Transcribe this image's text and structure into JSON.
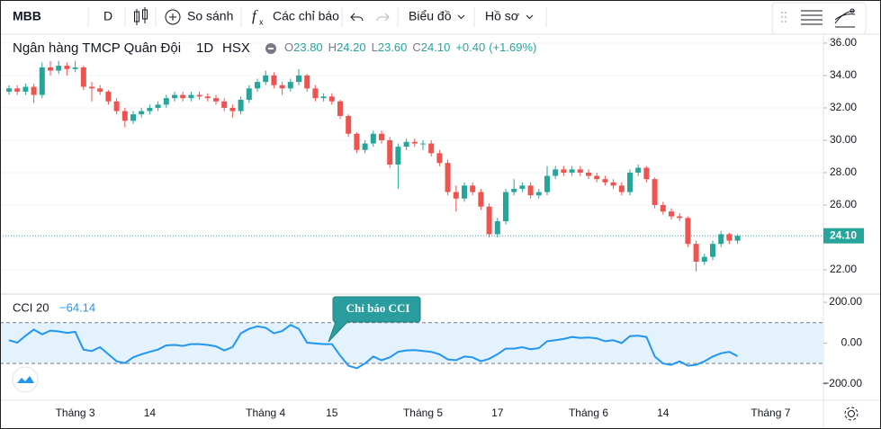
{
  "toolbar": {
    "symbol": "MBB",
    "interval": "D",
    "compare": "So sánh",
    "indicators": "Các chỉ báo",
    "chart": "Biểu đồ",
    "profile": "Hồ sơ"
  },
  "chart_data": [
    {
      "type": "candlestick",
      "title": "Ngân hàng TMCP Quân Đội",
      "interval": "1D",
      "exchange": "HSX",
      "up_color": "#26a69a",
      "down_color": "#ef5350",
      "categories": [
        null,
        null,
        null,
        null,
        null,
        null,
        null,
        null,
        "Tháng 3",
        null,
        null,
        null,
        null,
        null,
        null,
        null,
        null,
        "14",
        null,
        null,
        null,
        null,
        null,
        null,
        null,
        null,
        null,
        null,
        null,
        null,
        null,
        "Tháng 4",
        null,
        null,
        null,
        null,
        null,
        null,
        null,
        "15",
        null,
        null,
        null,
        null,
        null,
        null,
        null,
        null,
        null,
        null,
        "Tháng 5",
        null,
        null,
        null,
        null,
        null,
        null,
        null,
        null,
        "17",
        null,
        null,
        null,
        null,
        null,
        null,
        null,
        null,
        null,
        null,
        "Tháng 6",
        null,
        null,
        null,
        null,
        null,
        null,
        null,
        null,
        "14",
        null,
        null,
        null,
        null,
        null,
        null,
        null,
        null,
        null,
        null,
        null,
        null,
        "Tháng 7"
      ],
      "ohlc": [
        [
          33.0,
          33.4,
          32.8,
          33.2
        ],
        [
          33.2,
          33.4,
          32.8,
          33.0
        ],
        [
          33.0,
          33.5,
          32.8,
          33.3
        ],
        [
          33.3,
          33.5,
          32.3,
          32.8
        ],
        [
          32.8,
          34.8,
          32.6,
          34.5
        ],
        [
          34.5,
          34.9,
          34.0,
          34.3
        ],
        [
          34.3,
          34.9,
          34.1,
          34.6
        ],
        [
          34.6,
          34.8,
          34.0,
          34.4
        ],
        [
          34.4,
          34.9,
          34.2,
          34.5
        ],
        [
          34.5,
          34.6,
          33.1,
          33.3
        ],
        [
          33.3,
          33.6,
          32.4,
          33.2
        ],
        [
          33.2,
          33.4,
          32.8,
          33.0
        ],
        [
          33.0,
          33.1,
          32.2,
          32.4
        ],
        [
          32.4,
          32.6,
          31.6,
          31.8
        ],
        [
          31.8,
          32.0,
          30.8,
          31.2
        ],
        [
          31.2,
          31.8,
          31.0,
          31.6
        ],
        [
          31.6,
          32.0,
          31.4,
          31.8
        ],
        [
          31.8,
          32.2,
          31.6,
          32.0
        ],
        [
          32.0,
          32.4,
          31.8,
          32.2
        ],
        [
          32.2,
          32.8,
          32.0,
          32.6
        ],
        [
          32.6,
          33.0,
          32.4,
          32.8
        ],
        [
          32.8,
          33.0,
          32.4,
          32.6
        ],
        [
          32.6,
          33.0,
          32.4,
          32.8
        ],
        [
          32.8,
          33.0,
          32.5,
          32.7
        ],
        [
          32.7,
          32.9,
          32.4,
          32.6
        ],
        [
          32.6,
          32.8,
          32.2,
          32.4
        ],
        [
          32.4,
          32.6,
          31.8,
          32.0
        ],
        [
          32.0,
          32.2,
          31.4,
          31.8
        ],
        [
          31.8,
          32.7,
          31.6,
          32.5
        ],
        [
          32.5,
          33.4,
          32.3,
          33.2
        ],
        [
          33.2,
          33.8,
          33.0,
          33.6
        ],
        [
          33.6,
          34.3,
          33.4,
          34.0
        ],
        [
          34.0,
          34.2,
          33.2,
          33.4
        ],
        [
          33.4,
          33.6,
          32.8,
          33.2
        ],
        [
          33.2,
          33.8,
          33.0,
          33.6
        ],
        [
          33.6,
          34.4,
          33.4,
          34.0
        ],
        [
          34.0,
          34.1,
          33.0,
          33.2
        ],
        [
          33.2,
          33.4,
          32.4,
          32.6
        ],
        [
          32.6,
          32.9,
          32.4,
          32.7
        ],
        [
          32.7,
          32.9,
          32.2,
          32.4
        ],
        [
          32.4,
          32.5,
          31.3,
          31.5
        ],
        [
          31.5,
          31.6,
          30.2,
          30.4
        ],
        [
          30.4,
          30.5,
          29.2,
          29.4
        ],
        [
          29.4,
          30.0,
          29.2,
          29.8
        ],
        [
          29.8,
          30.6,
          29.6,
          30.4
        ],
        [
          30.4,
          30.6,
          29.8,
          30.0
        ],
        [
          30.0,
          30.2,
          28.3,
          28.5
        ],
        [
          28.5,
          29.8,
          27.0,
          29.6
        ],
        [
          29.6,
          30.1,
          29.4,
          29.9
        ],
        [
          29.9,
          30.1,
          29.6,
          29.8
        ],
        [
          29.8,
          30.0,
          29.4,
          29.8
        ],
        [
          29.8,
          30.0,
          29.0,
          29.2
        ],
        [
          29.2,
          29.4,
          28.4,
          28.6
        ],
        [
          28.6,
          28.8,
          26.6,
          26.8
        ],
        [
          26.8,
          27.2,
          25.6,
          26.4
        ],
        [
          26.4,
          27.4,
          26.2,
          27.2
        ],
        [
          27.2,
          27.4,
          26.6,
          26.8
        ],
        [
          26.8,
          27.0,
          25.7,
          25.9
        ],
        [
          25.9,
          26.1,
          24.0,
          24.2
        ],
        [
          24.2,
          25.2,
          24.0,
          25.0
        ],
        [
          25.0,
          27.0,
          24.8,
          26.8
        ],
        [
          26.8,
          27.6,
          26.6,
          27.0
        ],
        [
          27.0,
          27.4,
          26.8,
          27.2
        ],
        [
          27.2,
          27.4,
          26.4,
          26.6
        ],
        [
          26.6,
          27.0,
          26.4,
          26.8
        ],
        [
          26.8,
          28.4,
          26.6,
          27.8
        ],
        [
          27.8,
          28.4,
          27.6,
          28.2
        ],
        [
          28.2,
          28.4,
          27.8,
          28.0
        ],
        [
          28.0,
          28.4,
          27.8,
          28.2
        ],
        [
          28.2,
          28.4,
          27.8,
          28.0
        ],
        [
          28.0,
          28.2,
          27.6,
          27.8
        ],
        [
          27.8,
          28.0,
          27.4,
          27.6
        ],
        [
          27.6,
          27.8,
          27.2,
          27.4
        ],
        [
          27.4,
          27.6,
          27.0,
          27.2
        ],
        [
          27.2,
          27.4,
          26.6,
          26.8
        ],
        [
          26.8,
          28.2,
          26.6,
          28.0
        ],
        [
          28.0,
          28.5,
          27.8,
          28.3
        ],
        [
          28.3,
          28.4,
          27.4,
          27.6
        ],
        [
          27.6,
          27.7,
          25.8,
          26.0
        ],
        [
          26.0,
          26.2,
          25.4,
          25.6
        ],
        [
          25.6,
          25.8,
          25.1,
          25.3
        ],
        [
          25.3,
          25.5,
          25.0,
          25.2
        ],
        [
          25.2,
          25.3,
          23.4,
          23.6
        ],
        [
          23.6,
          23.8,
          21.9,
          22.5
        ],
        [
          22.5,
          23.0,
          22.3,
          22.8
        ],
        [
          22.8,
          23.8,
          22.6,
          23.6
        ],
        [
          23.6,
          24.4,
          23.4,
          24.2
        ],
        [
          24.2,
          24.3,
          23.6,
          23.8
        ],
        [
          23.8,
          24.2,
          23.6,
          24.1
        ],
        null,
        null,
        null,
        null
      ],
      "ohlc_names": [
        "O",
        "H",
        "L",
        "C"
      ],
      "last_labels": [
        "23.80",
        "24.20",
        "23.60",
        "24.10"
      ],
      "change_label": "+0.40",
      "change_pct_label": "(+1.69%)",
      "price_line": {
        "value": 24.1,
        "label": "24.10",
        "color": "#26a69a"
      },
      "ylim": [
        20.5,
        36.55
      ],
      "yticks": [
        {
          "value": 22,
          "label": "22.00"
        },
        {
          "value": 24,
          "label": "24.00"
        },
        {
          "value": 26,
          "label": "26.00"
        },
        {
          "value": 28,
          "label": "28.00"
        },
        {
          "value": 30,
          "label": "30.00"
        },
        {
          "value": 32,
          "label": "32.00"
        },
        {
          "value": 34,
          "label": "34.00"
        },
        {
          "value": 36,
          "label": "36.00"
        }
      ]
    },
    {
      "type": "line",
      "legend": "CCI 20",
      "color": "#2196f3",
      "values": [
        14,
        2,
        36,
        66,
        43,
        61,
        57,
        50,
        55,
        -32,
        -39,
        -20,
        -55,
        -89,
        -98,
        -70,
        -55,
        -43,
        -32,
        -11,
        -9,
        -14,
        -5,
        -5,
        -9,
        -16,
        -36,
        -20,
        48,
        70,
        82,
        75,
        48,
        59,
        89,
        70,
        2,
        -2,
        -5,
        -5,
        -61,
        -111,
        -123,
        -100,
        -66,
        -84,
        -70,
        -43,
        -36,
        -34,
        -39,
        -43,
        -55,
        -80,
        -84,
        -66,
        -70,
        -89,
        -77,
        -55,
        -27,
        -27,
        -20,
        -30,
        -25,
        9,
        14,
        20,
        30,
        25,
        27,
        23,
        9,
        14,
        0,
        34,
        36,
        30,
        -66,
        -100,
        -107,
        -89,
        -111,
        -107,
        -89,
        -66,
        -50,
        -43,
        -64.14,
        null,
        null,
        null,
        null
      ],
      "value_labels": [
        null,
        null,
        null,
        null,
        null,
        null,
        null,
        null,
        null,
        null,
        null,
        null,
        null,
        null,
        null,
        null,
        null,
        null,
        null,
        null,
        null,
        null,
        null,
        null,
        null,
        null,
        null,
        null,
        null,
        null,
        null,
        null,
        null,
        null,
        null,
        null,
        null,
        null,
        null,
        null,
        null,
        null,
        null,
        null,
        null,
        null,
        null,
        null,
        null,
        null,
        null,
        null,
        null,
        null,
        null,
        null,
        null,
        null,
        null,
        null,
        null,
        null,
        null,
        null,
        null,
        null,
        null,
        null,
        null,
        null,
        null,
        null,
        null,
        null,
        null,
        null,
        null,
        null,
        null,
        null,
        null,
        null,
        null,
        null,
        null,
        null,
        null,
        null,
        "−64.14",
        null,
        null,
        null,
        null
      ],
      "band_lines": [
        100,
        -100
      ],
      "band_color": "#e3f2fd",
      "annotation": "Chỉ báo CCI",
      "annotation_color": "#2a9d9f",
      "ylim": [
        -280,
        240
      ],
      "yticks": [
        {
          "value": 200,
          "label": "200.00"
        },
        {
          "value": 0,
          "label": "0.00"
        },
        {
          "value": -200,
          "label": "−200.00"
        }
      ]
    }
  ]
}
